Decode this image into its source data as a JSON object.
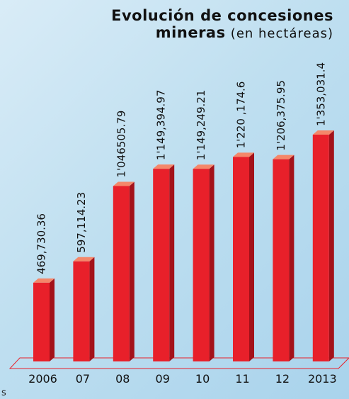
{
  "chart_data": {
    "type": "bar",
    "title": "Evolución de concesiones mineras",
    "subtitle": "(en hectáreas)",
    "categories": [
      "2006",
      "07",
      "08",
      "09",
      "10",
      "11",
      "12",
      "2013"
    ],
    "values": [
      469730.36,
      597114.23,
      1046505.79,
      1149394.97,
      1149249.21,
      1220174.6,
      1206375.95,
      1353031.4
    ],
    "value_labels": [
      "469,730.36",
      "597,114.23",
      "1'046505.79",
      "1'149,394.97",
      "1'149,249.21",
      "1'220 ,174.6",
      "1'206,375.95",
      "1'353,031.4"
    ],
    "color": "#e8202a",
    "note": "s"
  }
}
